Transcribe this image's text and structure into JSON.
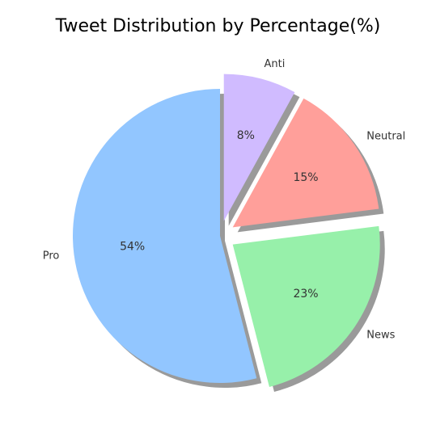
{
  "chart_data": {
    "type": "pie",
    "title": "Tweet Distribution by Percentage(%)",
    "categories": [
      "Pro",
      "News",
      "Neutral",
      "Anti"
    ],
    "values": [
      54,
      23,
      15,
      8
    ],
    "labels": [
      "54%",
      "23%",
      "15%",
      "8%"
    ],
    "colors": [
      "#92c6ff",
      "#97f0aa",
      "#ff9f9a",
      "#d0bbff"
    ],
    "exploded": [
      false,
      true,
      true,
      true
    ],
    "shadow": true,
    "start_angle_deg": 90,
    "direction": "counterclockwise"
  }
}
